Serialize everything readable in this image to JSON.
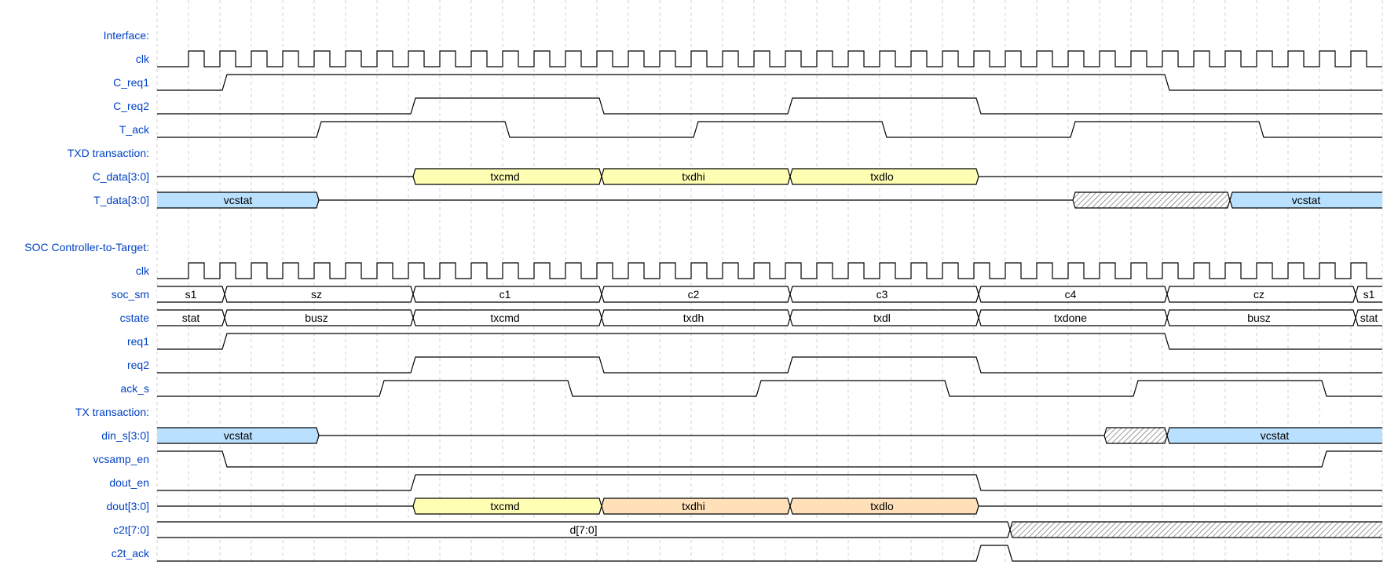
{
  "total_cycles": 39,
  "colors": {
    "label": "#0041c4",
    "3": "#ffffb4",
    "4": "#ffe0b9",
    "5": "#b9e0ff",
    "=": "#ffffff"
  },
  "rows": [
    {
      "label": "Interface:"
    },
    {
      "name": "clk",
      "kind": "clock",
      "start": 1
    },
    {
      "name": "C_req1",
      "kind": "bit",
      "events": [
        [
          0,
          "0"
        ],
        [
          2,
          "1"
        ],
        [
          32,
          "0"
        ]
      ]
    },
    {
      "name": "C_req2",
      "kind": "bit",
      "events": [
        [
          0,
          "0"
        ],
        [
          8,
          "1"
        ],
        [
          14,
          "0"
        ],
        [
          20,
          "1"
        ],
        [
          26,
          "0"
        ]
      ]
    },
    {
      "name": "T_ack",
      "kind": "bit",
      "events": [
        [
          0,
          "0"
        ],
        [
          5,
          "1"
        ],
        [
          11,
          "0"
        ],
        [
          17,
          "1"
        ],
        [
          23,
          "0"
        ],
        [
          29,
          "1"
        ],
        [
          35,
          "0"
        ]
      ]
    },
    {
      "label": "TXD transaction:"
    },
    {
      "name": "C_data[3:0]",
      "kind": "bus",
      "segments": [
        [
          0,
          "z"
        ],
        [
          8,
          "3",
          "txcmd"
        ],
        [
          14,
          "3",
          "txdhi"
        ],
        [
          20,
          "3",
          "txdlo"
        ],
        [
          26,
          "z"
        ]
      ]
    },
    {
      "name": "T_data[3:0]",
      "kind": "bus",
      "segments": [
        [
          0,
          "5",
          "vcstat"
        ],
        [
          5,
          "z"
        ],
        [
          29,
          "x"
        ],
        [
          34,
          "5",
          "vcstat"
        ]
      ]
    },
    {
      "label": ""
    },
    {
      "label": "SOC Controller-to-Target:"
    },
    {
      "name": "clk",
      "kind": "clock",
      "start": 1
    },
    {
      "name": "soc_sm",
      "kind": "bus",
      "segments": [
        [
          0,
          "=",
          "s1"
        ],
        [
          2,
          "=",
          "sz"
        ],
        [
          8,
          "=",
          "c1"
        ],
        [
          14,
          "=",
          "c2"
        ],
        [
          20,
          "=",
          "c3"
        ],
        [
          26,
          "=",
          "c4"
        ],
        [
          32,
          "=",
          "cz"
        ],
        [
          38,
          "=",
          "s1"
        ]
      ]
    },
    {
      "name": "cstate",
      "kind": "bus",
      "segments": [
        [
          0,
          "=",
          "stat"
        ],
        [
          2,
          "=",
          "busz"
        ],
        [
          8,
          "=",
          "txcmd"
        ],
        [
          14,
          "=",
          "txdh"
        ],
        [
          20,
          "=",
          "txdl"
        ],
        [
          26,
          "=",
          "txdone"
        ],
        [
          32,
          "=",
          "busz"
        ],
        [
          38,
          "=",
          "stat"
        ]
      ]
    },
    {
      "name": "req1",
      "kind": "bit",
      "events": [
        [
          0,
          "0"
        ],
        [
          2,
          "1"
        ],
        [
          32,
          "0"
        ]
      ]
    },
    {
      "name": "req2",
      "kind": "bit",
      "events": [
        [
          0,
          "0"
        ],
        [
          8,
          "1"
        ],
        [
          14,
          "0"
        ],
        [
          20,
          "1"
        ],
        [
          26,
          "0"
        ]
      ]
    },
    {
      "name": "ack_s",
      "kind": "bit",
      "events": [
        [
          0,
          "0"
        ],
        [
          7,
          "1"
        ],
        [
          13,
          "0"
        ],
        [
          19,
          "1"
        ],
        [
          25,
          "0"
        ],
        [
          31,
          "1"
        ],
        [
          37,
          "0"
        ]
      ]
    },
    {
      "label": "TX transaction:"
    },
    {
      "name": "din_s[3:0]",
      "kind": "bus",
      "segments": [
        [
          0,
          "5",
          "vcstat"
        ],
        [
          5,
          "z"
        ],
        [
          30,
          "x"
        ],
        [
          32,
          "5",
          "vcstat"
        ]
      ]
    },
    {
      "name": "vcsamp_en",
      "kind": "bit",
      "events": [
        [
          0,
          "1"
        ],
        [
          2,
          "0"
        ],
        [
          37,
          "1"
        ]
      ]
    },
    {
      "name": "dout_en",
      "kind": "bit",
      "events": [
        [
          0,
          "0"
        ],
        [
          8,
          "1"
        ],
        [
          26,
          "0"
        ]
      ]
    },
    {
      "name": "dout[3:0]",
      "kind": "bus",
      "segments": [
        [
          0,
          "z"
        ],
        [
          8,
          "3",
          "txcmd"
        ],
        [
          14,
          "4",
          "txdhi"
        ],
        [
          20,
          "4",
          "txdlo"
        ],
        [
          26,
          "z"
        ]
      ]
    },
    {
      "name": "c2t[7:0]",
      "kind": "bus",
      "segments": [
        [
          0,
          "=",
          "d[7:0]"
        ],
        [
          27,
          "x"
        ]
      ]
    },
    {
      "name": "c2t_ack",
      "kind": "bit",
      "events": [
        [
          0,
          "0"
        ],
        [
          26,
          "1"
        ],
        [
          27,
          "0"
        ]
      ]
    }
  ]
}
